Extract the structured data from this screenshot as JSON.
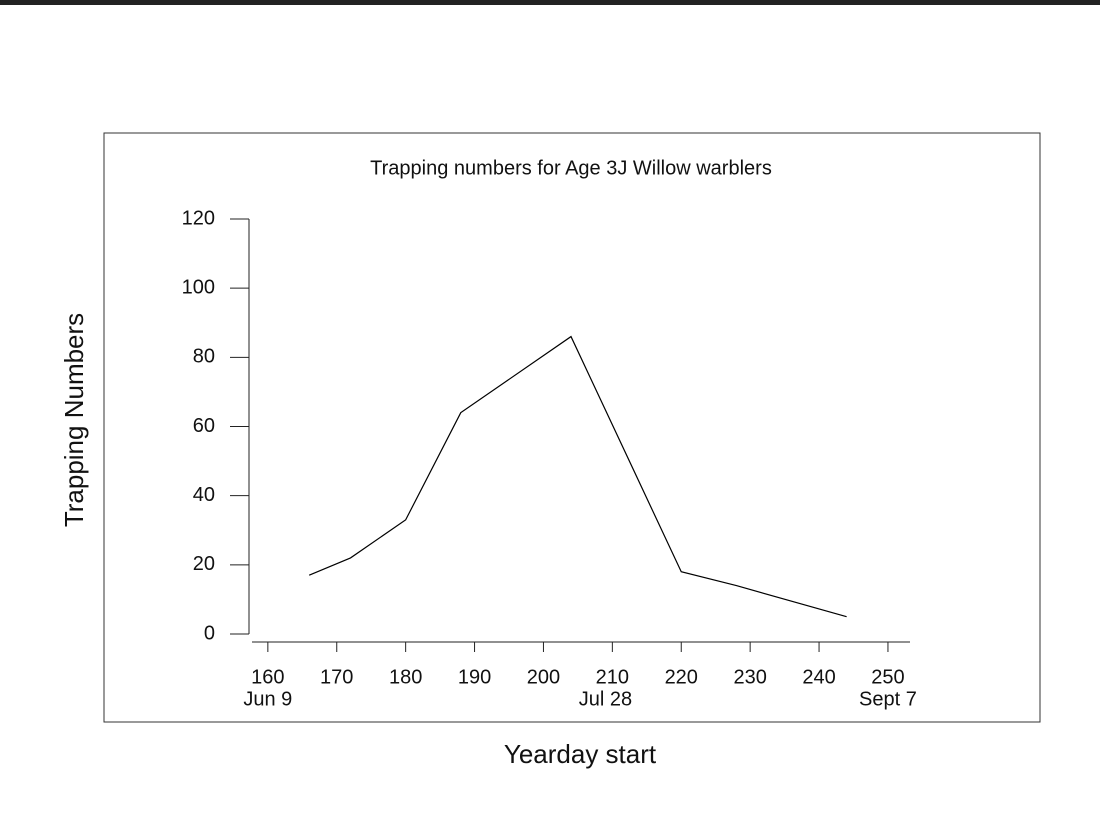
{
  "chart_data": {
    "type": "line",
    "title": "Trapping numbers for Age 3J Willow warblers",
    "x_label": "Yearday start",
    "y_label": "Trapping Numbers",
    "x": [
      166,
      172,
      180,
      188,
      204,
      220,
      228,
      244
    ],
    "series": [
      {
        "color": "#000000",
        "values": [
          17,
          22,
          33,
          64,
          86,
          18,
          14,
          5
        ]
      }
    ],
    "xlim": [
      157.7,
      253.2
    ],
    "ylim": [
      0,
      120
    ],
    "xticks": [
      160,
      170,
      180,
      190,
      200,
      210,
      220,
      230,
      240,
      250
    ],
    "yticks": [
      0,
      20,
      40,
      60,
      80,
      100,
      120
    ],
    "annotations": [
      {
        "x": 160,
        "text": "Jun 9"
      },
      {
        "x": 209,
        "text": "Jul 28"
      },
      {
        "x": 250,
        "text": "Sept 7"
      }
    ],
    "grid": false
  }
}
